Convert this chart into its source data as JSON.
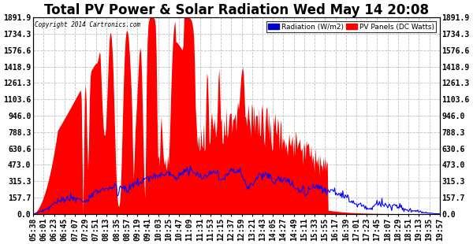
{
  "title": "Total PV Power & Solar Radiation Wed May 14 20:08",
  "copyright_text": "Copyright 2014 Cartronics.com",
  "y_ticks": [
    0.0,
    157.7,
    315.3,
    473.0,
    630.6,
    788.3,
    946.0,
    1103.6,
    1261.3,
    1418.9,
    1576.6,
    1734.3,
    1891.9
  ],
  "y_max": 1891.9,
  "x_tick_labels": [
    "05:38",
    "06:01",
    "06:23",
    "06:45",
    "07:07",
    "07:29",
    "07:51",
    "08:13",
    "08:35",
    "08:57",
    "09:19",
    "09:41",
    "10:03",
    "10:25",
    "10:47",
    "11:09",
    "11:31",
    "11:53",
    "12:15",
    "12:37",
    "12:59",
    "13:21",
    "13:43",
    "14:05",
    "14:27",
    "14:49",
    "15:11",
    "15:33",
    "15:55",
    "16:17",
    "16:39",
    "17:01",
    "17:23",
    "17:45",
    "18:07",
    "18:29",
    "18:51",
    "19:13",
    "19:35",
    "19:57"
  ],
  "pv_fill_color": "#ff0000",
  "radiation_line_color": "#0000ff",
  "background_color": "#ffffff",
  "grid_color": "#cccccc",
  "title_fontsize": 12,
  "axis_fontsize": 7
}
